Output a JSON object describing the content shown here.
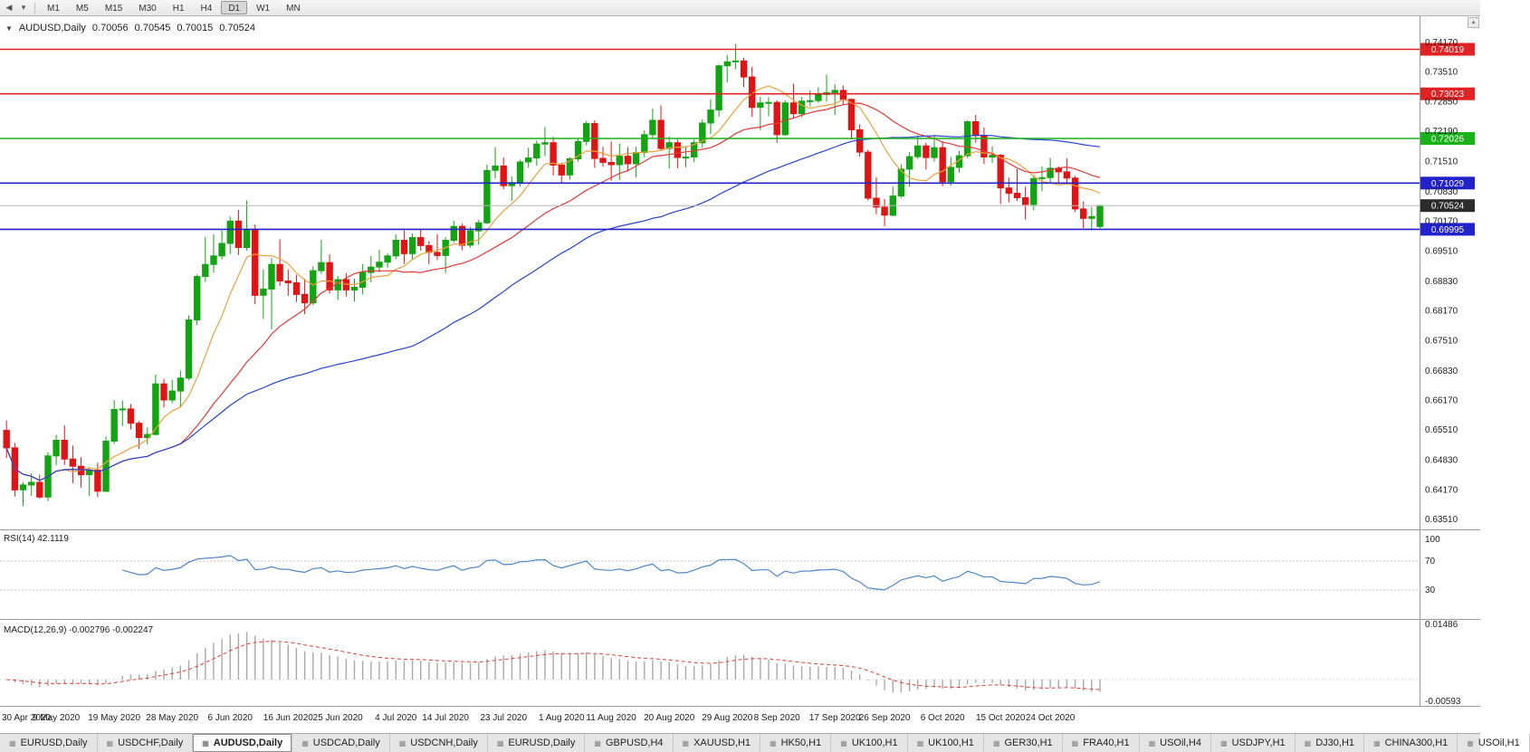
{
  "toolbar": {
    "timeframes": [
      "M1",
      "M5",
      "M15",
      "M30",
      "H1",
      "H4",
      "D1",
      "W1",
      "MN"
    ],
    "active_timeframe": "D1"
  },
  "chart_header": {
    "symbol": "AUDUSD,Daily",
    "open": "0.70056",
    "high": "0.70545",
    "low": "0.70015",
    "close": "0.70524"
  },
  "chart_data": {
    "type": "candlestick",
    "symbol": "AUDUSD",
    "timeframe": "Daily",
    "colors": {
      "bull": "#12a412",
      "bear": "#e01414",
      "axis_text": "#1c1c1c",
      "current_badge": "#2b2b2b"
    },
    "price_axis_labels": [
      "0.74170",
      "0.73510",
      "0.72850",
      "0.72190",
      "0.71510",
      "0.70830",
      "0.70170",
      "0.69510",
      "0.68830",
      "0.68170",
      "0.67510",
      "0.66830",
      "0.66170",
      "0.65510",
      "0.64830",
      "0.64170",
      "0.63510"
    ],
    "hlines": [
      {
        "price": 0.74019,
        "label": "0.74019",
        "color": "#e02222"
      },
      {
        "price": 0.73023,
        "label": "0.73023",
        "color": "#e02222"
      },
      {
        "price": 0.72026,
        "label": "0.72026",
        "color": "#19b219"
      },
      {
        "price": 0.71029,
        "label": "0.71029",
        "color": "#2222cc"
      },
      {
        "price": 0.69995,
        "label": "0.69995",
        "color": "#2222cc"
      }
    ],
    "current_price": {
      "value": 0.70524,
      "label": "0.70524"
    },
    "overlays": [
      {
        "name": "ma-fast",
        "period": 8,
        "color": "#eba23c"
      },
      {
        "name": "ma-mid",
        "period": 21,
        "color": "#e03a3a"
      },
      {
        "name": "ma-slow",
        "period": 50,
        "color": "#2743cd"
      }
    ],
    "indicators": [
      {
        "name": "RSI",
        "title": "RSI(14) 42.1119",
        "period": 14,
        "color": "#4f86c6",
        "levels": [
          70,
          30
        ],
        "axis_labels": [
          "100",
          "70",
          "30"
        ]
      },
      {
        "name": "MACD",
        "title": "MACD(12,26,9) -0.002796 -0.002247",
        "fast": 12,
        "slow": 26,
        "signal": 9,
        "hist_color": "#a8a8a8",
        "signal_color": "#e03a3a",
        "axis_labels": [
          "0.01486",
          "-0.00593"
        ]
      }
    ],
    "date_labels": [
      {
        "label": "30 Apr 2020",
        "index": 0
      },
      {
        "label": "9 May 2020",
        "index": 6
      },
      {
        "label": "19 May 2020",
        "index": 13
      },
      {
        "label": "28 May 2020",
        "index": 20
      },
      {
        "label": "6 Jun 2020",
        "index": 27
      },
      {
        "label": "16 Jun 2020",
        "index": 34
      },
      {
        "label": "25 Jun 2020",
        "index": 40
      },
      {
        "label": "4 Jul 2020",
        "index": 47
      },
      {
        "label": "14 Jul 2020",
        "index": 53
      },
      {
        "label": "23 Jul 2020",
        "index": 60
      },
      {
        "label": "1 Aug 2020",
        "index": 67
      },
      {
        "label": "11 Aug 2020",
        "index": 73
      },
      {
        "label": "20 Aug 2020",
        "index": 80
      },
      {
        "label": "29 Aug 2020",
        "index": 87
      },
      {
        "label": "8 Sep 2020",
        "index": 93
      },
      {
        "label": "17 Sep 2020",
        "index": 100
      },
      {
        "label": "26 Sep 2020",
        "index": 106
      },
      {
        "label": "6 Oct 2020",
        "index": 113
      },
      {
        "label": "15 Oct 2020",
        "index": 120
      },
      {
        "label": "24 Oct 2020",
        "index": 126
      }
    ],
    "candles": [
      [
        0.655,
        0.6572,
        0.6488,
        0.6511
      ],
      [
        0.6511,
        0.6522,
        0.6402,
        0.6417
      ],
      [
        0.6417,
        0.6434,
        0.6381,
        0.6428
      ],
      [
        0.6428,
        0.6454,
        0.6404,
        0.6434
      ],
      [
        0.6434,
        0.6451,
        0.6398,
        0.6401
      ],
      [
        0.6401,
        0.6501,
        0.6392,
        0.6493
      ],
      [
        0.6493,
        0.654,
        0.6472,
        0.6528
      ],
      [
        0.6528,
        0.6561,
        0.6473,
        0.6486
      ],
      [
        0.6486,
        0.6516,
        0.6432,
        0.647
      ],
      [
        0.647,
        0.649,
        0.6422,
        0.6451
      ],
      [
        0.6451,
        0.6468,
        0.6403,
        0.6461
      ],
      [
        0.6461,
        0.6478,
        0.6401,
        0.6414
      ],
      [
        0.6414,
        0.6536,
        0.6412,
        0.6526
      ],
      [
        0.6526,
        0.6618,
        0.652,
        0.6597
      ],
      [
        0.6597,
        0.6617,
        0.656,
        0.6598
      ],
      [
        0.6598,
        0.6609,
        0.6552,
        0.6566
      ],
      [
        0.6566,
        0.6571,
        0.6509,
        0.6534
      ],
      [
        0.6534,
        0.6557,
        0.6519,
        0.6541
      ],
      [
        0.6541,
        0.6675,
        0.6539,
        0.6654
      ],
      [
        0.6654,
        0.6665,
        0.6601,
        0.6618
      ],
      [
        0.6618,
        0.6663,
        0.6611,
        0.6638
      ],
      [
        0.6638,
        0.6684,
        0.6601,
        0.6667
      ],
      [
        0.6667,
        0.6807,
        0.6662,
        0.6797
      ],
      [
        0.6797,
        0.6899,
        0.6785,
        0.6894
      ],
      [
        0.6894,
        0.6983,
        0.6882,
        0.6921
      ],
      [
        0.6921,
        0.6988,
        0.6902,
        0.694
      ],
      [
        0.694,
        0.6997,
        0.6932,
        0.6968
      ],
      [
        0.6968,
        0.7028,
        0.6944,
        0.7018
      ],
      [
        0.7018,
        0.7043,
        0.6942,
        0.6959
      ],
      [
        0.6959,
        0.7064,
        0.6952,
        0.7
      ],
      [
        0.7,
        0.701,
        0.6832,
        0.6852
      ],
      [
        0.6852,
        0.691,
        0.6799,
        0.6866
      ],
      [
        0.6866,
        0.6935,
        0.6776,
        0.6921
      ],
      [
        0.6921,
        0.6977,
        0.6873,
        0.6884
      ],
      [
        0.6884,
        0.691,
        0.6851,
        0.688
      ],
      [
        0.688,
        0.6898,
        0.6837,
        0.6854
      ],
      [
        0.6854,
        0.6889,
        0.681,
        0.6835
      ],
      [
        0.6835,
        0.6917,
        0.683,
        0.6907
      ],
      [
        0.6907,
        0.6976,
        0.69,
        0.6925
      ],
      [
        0.6925,
        0.6944,
        0.6856,
        0.6864
      ],
      [
        0.6864,
        0.6895,
        0.6842,
        0.6887
      ],
      [
        0.6887,
        0.6902,
        0.6849,
        0.6864
      ],
      [
        0.6864,
        0.6889,
        0.6838,
        0.687
      ],
      [
        0.687,
        0.6922,
        0.6854,
        0.6903
      ],
      [
        0.6903,
        0.694,
        0.6881,
        0.6915
      ],
      [
        0.6915,
        0.6954,
        0.6903,
        0.6926
      ],
      [
        0.6926,
        0.6946,
        0.6914,
        0.694
      ],
      [
        0.694,
        0.6988,
        0.6932,
        0.6975
      ],
      [
        0.6975,
        0.6997,
        0.6922,
        0.6945
      ],
      [
        0.6945,
        0.699,
        0.6931,
        0.6981
      ],
      [
        0.6981,
        0.7001,
        0.6952,
        0.6963
      ],
      [
        0.6963,
        0.6973,
        0.6921,
        0.6948
      ],
      [
        0.6948,
        0.6989,
        0.6931,
        0.6941
      ],
      [
        0.6941,
        0.6982,
        0.6902,
        0.6975
      ],
      [
        0.6975,
        0.7019,
        0.697,
        0.7006
      ],
      [
        0.7006,
        0.7012,
        0.6953,
        0.6964
      ],
      [
        0.6964,
        0.7005,
        0.6958,
        0.6996
      ],
      [
        0.6996,
        0.7021,
        0.6965,
        0.7014
      ],
      [
        0.7014,
        0.7144,
        0.7011,
        0.7131
      ],
      [
        0.7131,
        0.7183,
        0.7113,
        0.7141
      ],
      [
        0.7141,
        0.716,
        0.7089,
        0.7097
      ],
      [
        0.7097,
        0.7118,
        0.7063,
        0.7104
      ],
      [
        0.7104,
        0.7155,
        0.7095,
        0.715
      ],
      [
        0.715,
        0.7182,
        0.7137,
        0.7159
      ],
      [
        0.7159,
        0.7198,
        0.7142,
        0.719
      ],
      [
        0.719,
        0.7228,
        0.7163,
        0.7193
      ],
      [
        0.7193,
        0.7206,
        0.712,
        0.7143
      ],
      [
        0.7143,
        0.7149,
        0.7103,
        0.7121
      ],
      [
        0.7121,
        0.7161,
        0.711,
        0.7157
      ],
      [
        0.7157,
        0.7202,
        0.7151,
        0.7196
      ],
      [
        0.7196,
        0.7242,
        0.7187,
        0.7236
      ],
      [
        0.7236,
        0.7243,
        0.7137,
        0.7158
      ],
      [
        0.7158,
        0.7184,
        0.7139,
        0.7149
      ],
      [
        0.7149,
        0.7196,
        0.7108,
        0.7144
      ],
      [
        0.7144,
        0.7191,
        0.711,
        0.7163
      ],
      [
        0.7163,
        0.7183,
        0.7129,
        0.7146
      ],
      [
        0.7146,
        0.7184,
        0.7115,
        0.7171
      ],
      [
        0.7171,
        0.7221,
        0.7161,
        0.7211
      ],
      [
        0.7211,
        0.7269,
        0.7202,
        0.7243
      ],
      [
        0.7243,
        0.7276,
        0.7176,
        0.718
      ],
      [
        0.718,
        0.7207,
        0.7135,
        0.7193
      ],
      [
        0.7193,
        0.72,
        0.7136,
        0.716
      ],
      [
        0.716,
        0.7186,
        0.7138,
        0.7161
      ],
      [
        0.7161,
        0.72,
        0.715,
        0.7193
      ],
      [
        0.7193,
        0.7245,
        0.7182,
        0.7237
      ],
      [
        0.7237,
        0.729,
        0.7212,
        0.7266
      ],
      [
        0.7266,
        0.7368,
        0.7251,
        0.7365
      ],
      [
        0.7365,
        0.7389,
        0.7328,
        0.7374
      ],
      [
        0.7374,
        0.7414,
        0.7357,
        0.7376
      ],
      [
        0.7376,
        0.7383,
        0.7317,
        0.734
      ],
      [
        0.734,
        0.7363,
        0.7251,
        0.7272
      ],
      [
        0.7272,
        0.7296,
        0.7221,
        0.7282
      ],
      [
        0.7282,
        0.7295,
        0.7252,
        0.7283
      ],
      [
        0.7283,
        0.7288,
        0.7193,
        0.7211
      ],
      [
        0.7211,
        0.7288,
        0.7208,
        0.7282
      ],
      [
        0.7282,
        0.7325,
        0.7248,
        0.7258
      ],
      [
        0.7258,
        0.7295,
        0.725,
        0.7286
      ],
      [
        0.7286,
        0.731,
        0.7274,
        0.7287
      ],
      [
        0.7287,
        0.7317,
        0.7282,
        0.7301
      ],
      [
        0.7301,
        0.7345,
        0.7285,
        0.7305
      ],
      [
        0.7305,
        0.7324,
        0.7255,
        0.731
      ],
      [
        0.731,
        0.7321,
        0.7277,
        0.729
      ],
      [
        0.729,
        0.7292,
        0.72,
        0.7222
      ],
      [
        0.7222,
        0.7234,
        0.7162,
        0.7172
      ],
      [
        0.7172,
        0.7177,
        0.7064,
        0.7069
      ],
      [
        0.7069,
        0.7116,
        0.7033,
        0.7049
      ],
      [
        0.7049,
        0.7067,
        0.7006,
        0.7031
      ],
      [
        0.7031,
        0.7095,
        0.7029,
        0.7074
      ],
      [
        0.7074,
        0.7145,
        0.7069,
        0.7134
      ],
      [
        0.7134,
        0.7172,
        0.7095,
        0.7162
      ],
      [
        0.7162,
        0.7209,
        0.7157,
        0.7186
      ],
      [
        0.7186,
        0.7193,
        0.7133,
        0.716
      ],
      [
        0.716,
        0.7209,
        0.7151,
        0.7182
      ],
      [
        0.7182,
        0.7196,
        0.7096,
        0.7106
      ],
      [
        0.7106,
        0.7161,
        0.7097,
        0.7138
      ],
      [
        0.7138,
        0.7175,
        0.7126,
        0.7164
      ],
      [
        0.7164,
        0.7243,
        0.7159,
        0.724
      ],
      [
        0.724,
        0.7255,
        0.7193,
        0.7209
      ],
      [
        0.7209,
        0.7227,
        0.7146,
        0.7161
      ],
      [
        0.7161,
        0.7185,
        0.7148,
        0.7165
      ],
      [
        0.7165,
        0.7168,
        0.7056,
        0.7092
      ],
      [
        0.7092,
        0.7115,
        0.706,
        0.708
      ],
      [
        0.708,
        0.7134,
        0.7063,
        0.707
      ],
      [
        0.707,
        0.7095,
        0.7021,
        0.7055
      ],
      [
        0.7055,
        0.7121,
        0.7042,
        0.7113
      ],
      [
        0.7113,
        0.714,
        0.7085,
        0.7115
      ],
      [
        0.7115,
        0.7159,
        0.7103,
        0.7136
      ],
      [
        0.7136,
        0.714,
        0.7103,
        0.7128
      ],
      [
        0.7128,
        0.7158,
        0.7104,
        0.7114
      ],
      [
        0.7114,
        0.7119,
        0.7038,
        0.7045
      ],
      [
        0.7045,
        0.7062,
        0.7002,
        0.7024
      ],
      [
        0.7024,
        0.7049,
        0.6997,
        0.7028
      ],
      [
        0.70056,
        0.70545,
        0.70015,
        0.70524
      ]
    ]
  },
  "tabs": {
    "active_index": 2,
    "items": [
      "EURUSD,Daily",
      "USDCHF,Daily",
      "AUDUSD,Daily",
      "USDCAD,Daily",
      "USDCNH,Daily",
      "EURUSD,Daily",
      "GBPUSD,H4",
      "XAUUSD,H1",
      "HK50,H1",
      "UK100,H1",
      "UK100,H1",
      "GER30,H1",
      "FRA40,H1",
      "USOil,H4",
      "USDJPY,H1",
      "DJ30,H1",
      "CHINA300,H1",
      "USOil,H1"
    ]
  }
}
